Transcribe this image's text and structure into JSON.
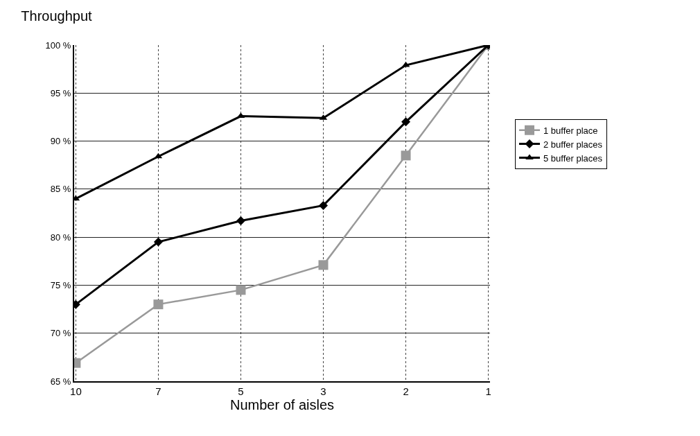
{
  "chart_data": {
    "type": "line",
    "title": "Throughput",
    "xlabel": "Number of aisles",
    "categories": [
      "10",
      "7",
      "5",
      "3",
      "2",
      "1"
    ],
    "series": [
      {
        "name": "1 buffer place",
        "color": "#999999",
        "marker": "square",
        "values": [
          66.9,
          73.0,
          74.5,
          77.1,
          88.5,
          100
        ]
      },
      {
        "name": "2 buffer places",
        "color": "#000000",
        "marker": "diamond",
        "values": [
          73.0,
          79.5,
          81.7,
          83.3,
          92.0,
          100
        ]
      },
      {
        "name": "5 buffer places",
        "color": "#000000",
        "marker": "triangle",
        "values": [
          84.0,
          88.4,
          92.6,
          92.4,
          97.9,
          100
        ]
      }
    ],
    "ylim": [
      65,
      100
    ],
    "yticks": [
      {
        "value": 65,
        "label": "65 %"
      },
      {
        "value": 70,
        "label": "70 %"
      },
      {
        "value": 75,
        "label": "75 %"
      },
      {
        "value": 80,
        "label": "80 %"
      },
      {
        "value": 85,
        "label": "85 %"
      },
      {
        "value": 90,
        "label": "90 %"
      },
      {
        "value": 95,
        "label": "95 %"
      },
      {
        "value": 100,
        "label": "100 %"
      }
    ],
    "grid": true,
    "legend": "right",
    "line_style": "solid"
  }
}
